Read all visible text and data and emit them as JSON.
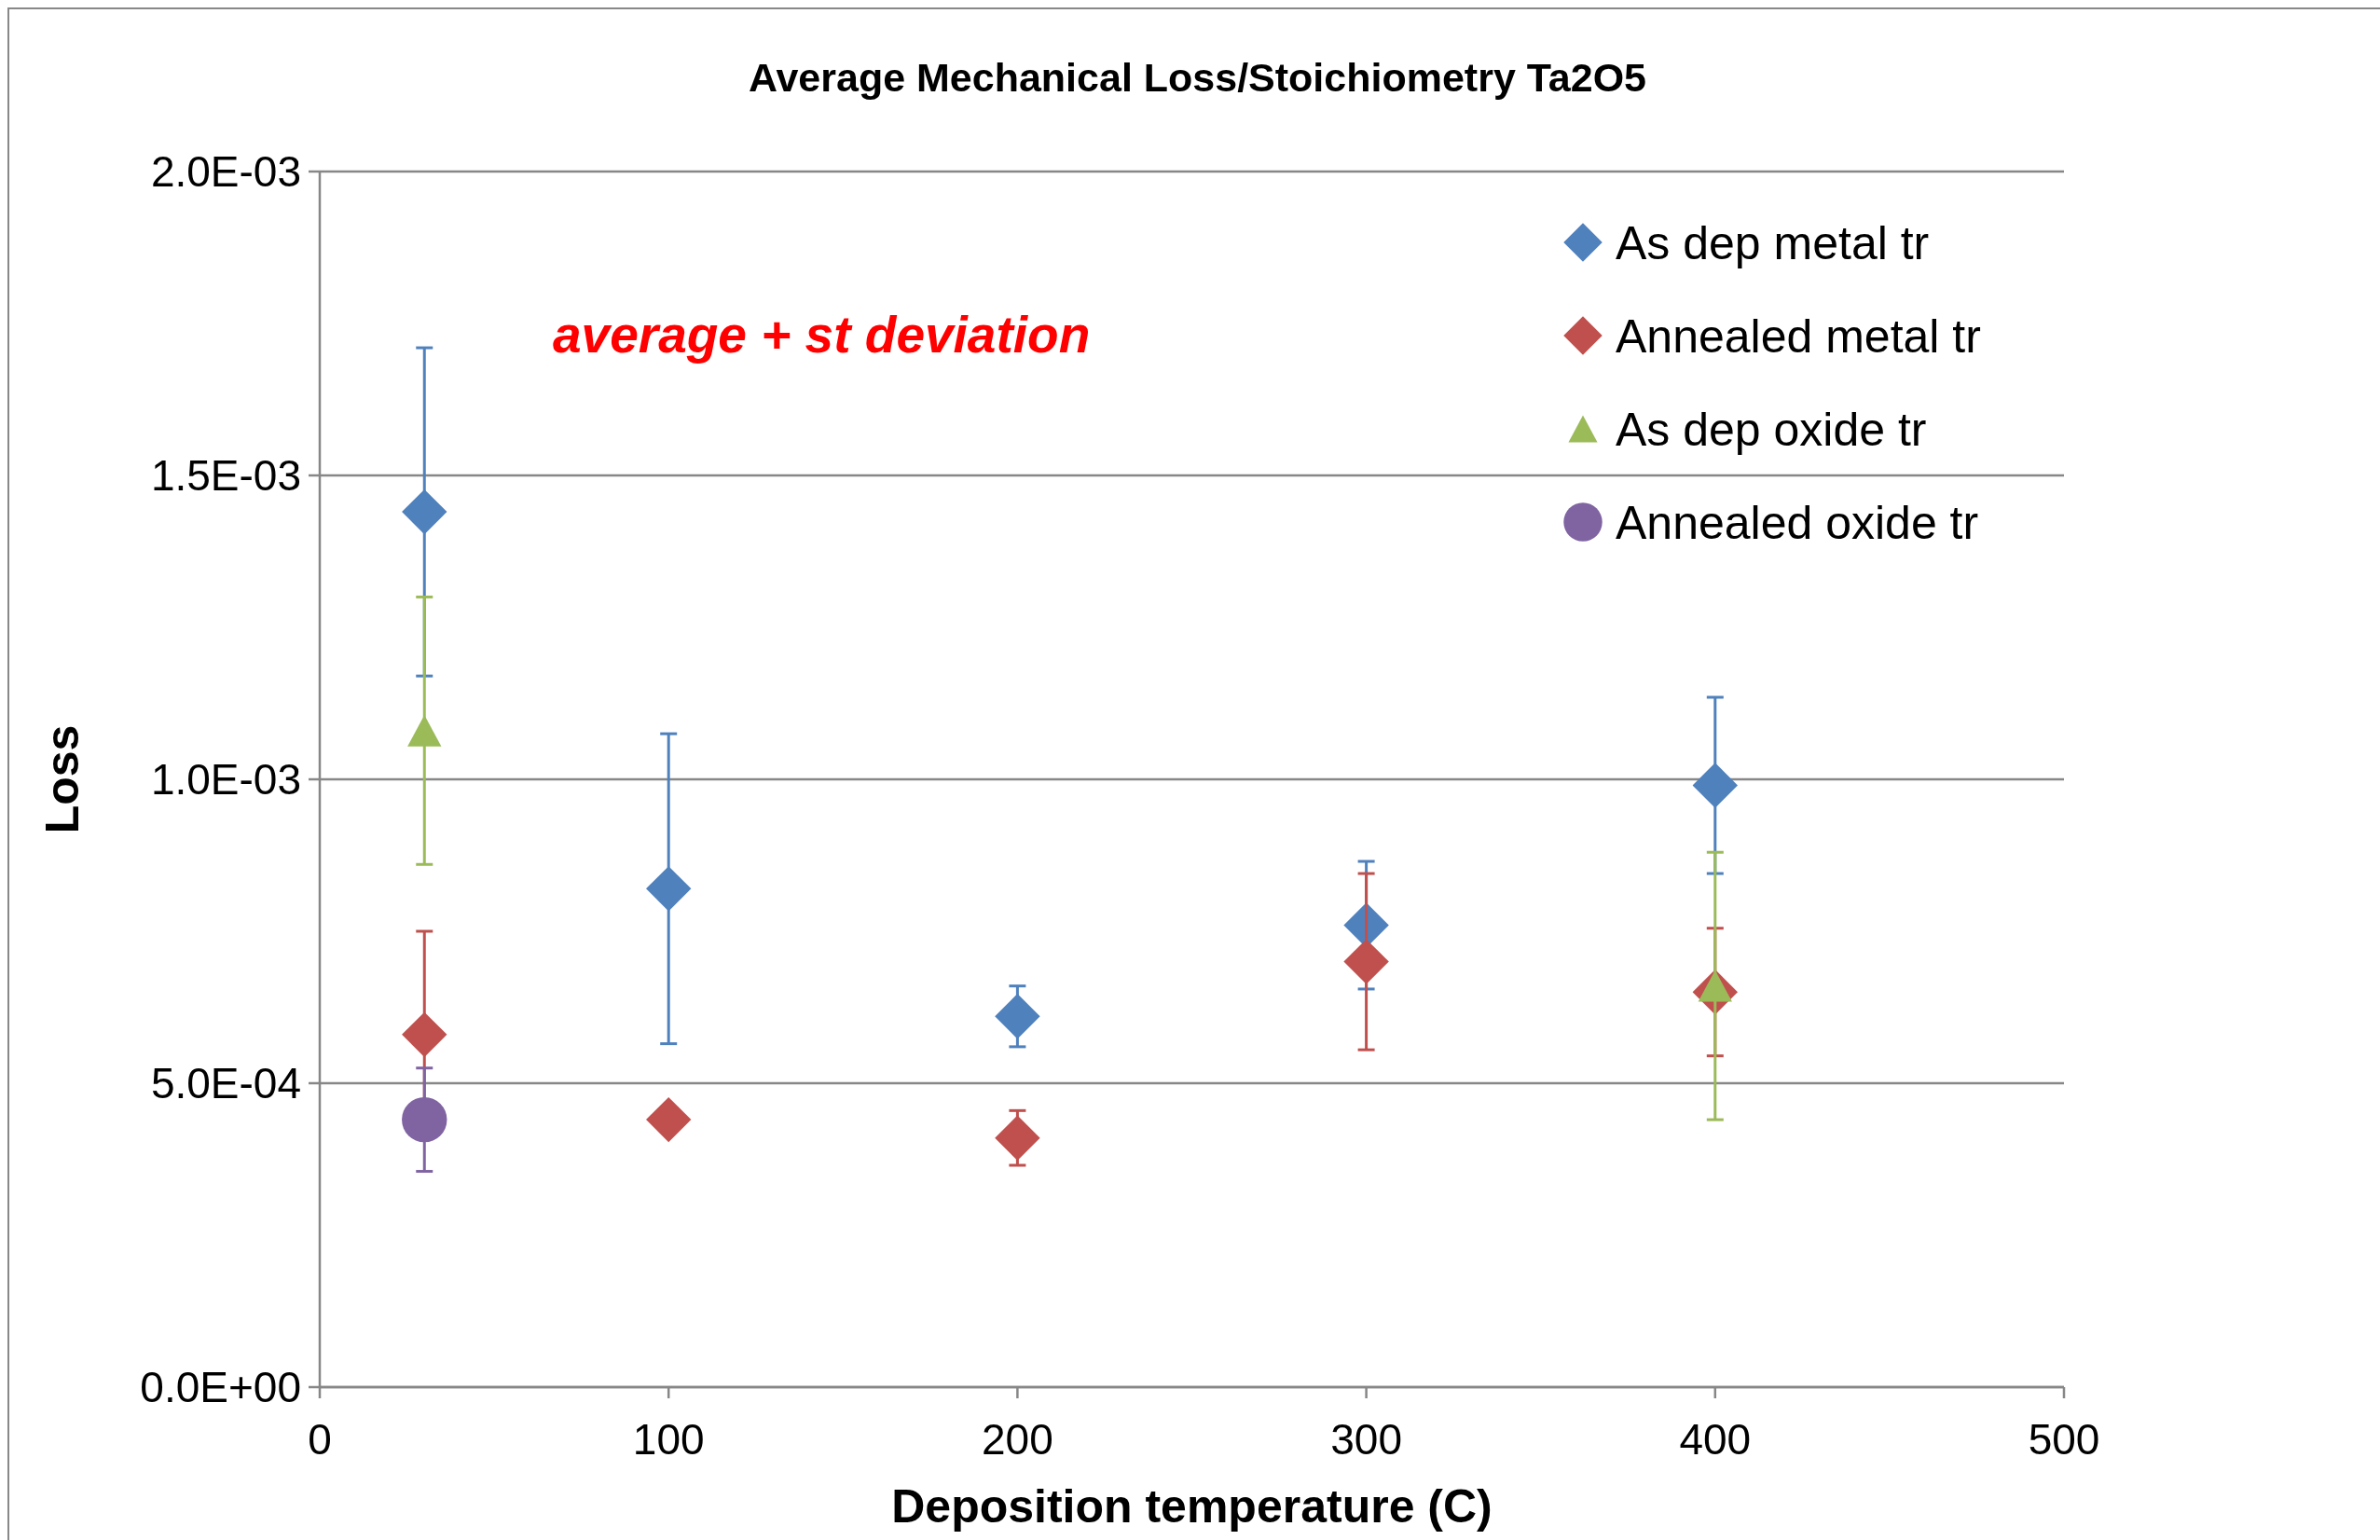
{
  "chart_data": {
    "type": "scatter",
    "title": "Average Mechanical Loss/Stoichiometry Ta2O5",
    "xlabel": "Deposition temperature (C)",
    "ylabel": "Loss",
    "annotations": [
      "average + st deviation"
    ],
    "xlim": [
      0,
      500
    ],
    "xticks": [
      0,
      100,
      200,
      300,
      400,
      500
    ],
    "ylim": [
      0,
      0.002
    ],
    "yticks": [
      {
        "value": 0,
        "label": "0.0E+00"
      },
      {
        "value": 0.0005,
        "label": "5.0E-04"
      },
      {
        "value": 0.001,
        "label": "1.0E-03"
      },
      {
        "value": 0.0015,
        "label": "1.5E-03"
      },
      {
        "value": 0.002,
        "label": "2.0E-03"
      }
    ],
    "grid": "y",
    "legend": "top right",
    "series": [
      {
        "name": "As dep metal tr",
        "color": "#4f81bd",
        "marker": "diamond",
        "x": [
          30,
          100,
          200,
          300,
          400
        ],
        "values": [
          0.00144,
          0.00082,
          0.00061,
          0.00076,
          0.00099
        ],
        "errors": [
          0.00027,
          0.000255,
          5e-05,
          0.000105,
          0.000145
        ]
      },
      {
        "name": "Annealed metal tr",
        "color": "#c0504d",
        "marker": "diamond",
        "x": [
          30,
          100,
          200,
          300,
          400
        ],
        "values": [
          0.00058,
          0.00044,
          0.00041,
          0.0007,
          0.00065
        ],
        "errors": [
          0.00017,
          null,
          4.5e-05,
          0.000145,
          0.000105
        ]
      },
      {
        "name": "As dep oxide tr",
        "color": "#9bbb59",
        "marker": "triangle",
        "x": [
          30,
          400
        ],
        "values": [
          0.00108,
          0.00066
        ],
        "errors": [
          0.00022,
          0.00022
        ]
      },
      {
        "name": "Annealed oxide tr",
        "color": "#8064a2",
        "marker": "circle",
        "x": [
          30
        ],
        "values": [
          0.00044
        ],
        "errors": [
          8.5e-05
        ]
      }
    ]
  }
}
